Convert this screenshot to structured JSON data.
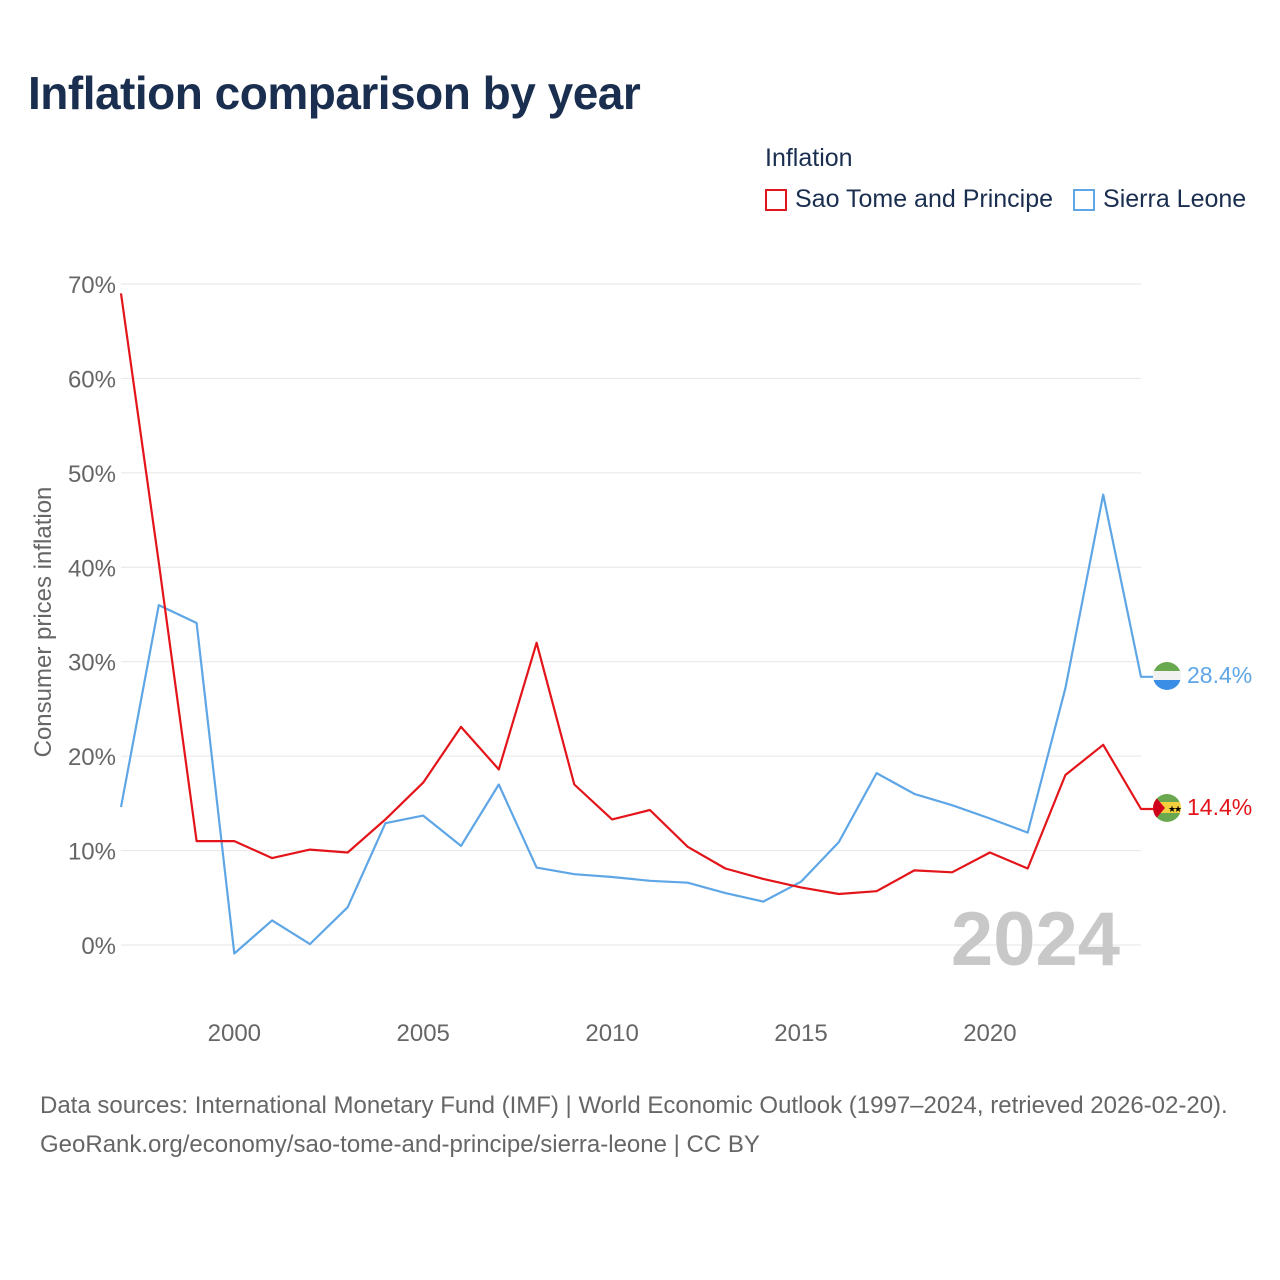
{
  "page": {
    "title": "Inflation comparison by year",
    "legend_title": "Inflation",
    "footer": {
      "source": "Data sources: International Monetary Fund (IMF) | World Economic Outlook (1997–2024, retrieved 2026-02-20).",
      "credit": "GeoRank.org/economy/sao-tome-and-principe/sierra-leone | CC BY"
    }
  },
  "chart_data": {
    "type": "line",
    "title": "Inflation comparison by year",
    "xlabel": "",
    "ylabel": "Consumer prices inflation",
    "xlim": [
      1997,
      2024
    ],
    "ylim": [
      -5,
      70
    ],
    "yticks": [
      0,
      10,
      20,
      30,
      40,
      50,
      60,
      70
    ],
    "ytick_labels": [
      "0%",
      "10%",
      "20%",
      "30%",
      "40%",
      "50%",
      "60%",
      "70%"
    ],
    "xticks": [
      2000,
      2005,
      2010,
      2015,
      2020
    ],
    "xtick_labels": [
      "2000",
      "2005",
      "2010",
      "2015",
      "2020"
    ],
    "year_watermark": "2024",
    "x": [
      1997,
      1998,
      1999,
      2000,
      2001,
      2002,
      2003,
      2004,
      2005,
      2006,
      2007,
      2008,
      2009,
      2010,
      2011,
      2012,
      2013,
      2014,
      2015,
      2016,
      2017,
      2018,
      2019,
      2020,
      2021,
      2022,
      2023,
      2024
    ],
    "series": [
      {
        "name": "Sao Tome and Principe",
        "color": "#e3151a",
        "end_label": "14.4%",
        "values": [
          69,
          40.5,
          11,
          11,
          9.2,
          10.1,
          9.8,
          13.3,
          17.2,
          23.1,
          18.6,
          32.0,
          17.0,
          13.3,
          14.3,
          10.4,
          8.1,
          7.0,
          6.1,
          5.4,
          5.7,
          7.9,
          7.7,
          9.8,
          8.1,
          18.0,
          21.2,
          14.4
        ]
      },
      {
        "name": "Sierra Leone",
        "color": "#5ea6e6",
        "end_label": "28.4%",
        "values": [
          14.6,
          36.0,
          34.1,
          -0.9,
          2.6,
          0.1,
          4.0,
          12.9,
          13.7,
          10.5,
          17.0,
          8.2,
          7.5,
          7.2,
          6.8,
          6.6,
          5.5,
          4.6,
          6.7,
          10.9,
          18.2,
          16.0,
          14.8,
          13.4,
          11.9,
          27.2,
          47.7,
          28.4
        ]
      }
    ]
  }
}
